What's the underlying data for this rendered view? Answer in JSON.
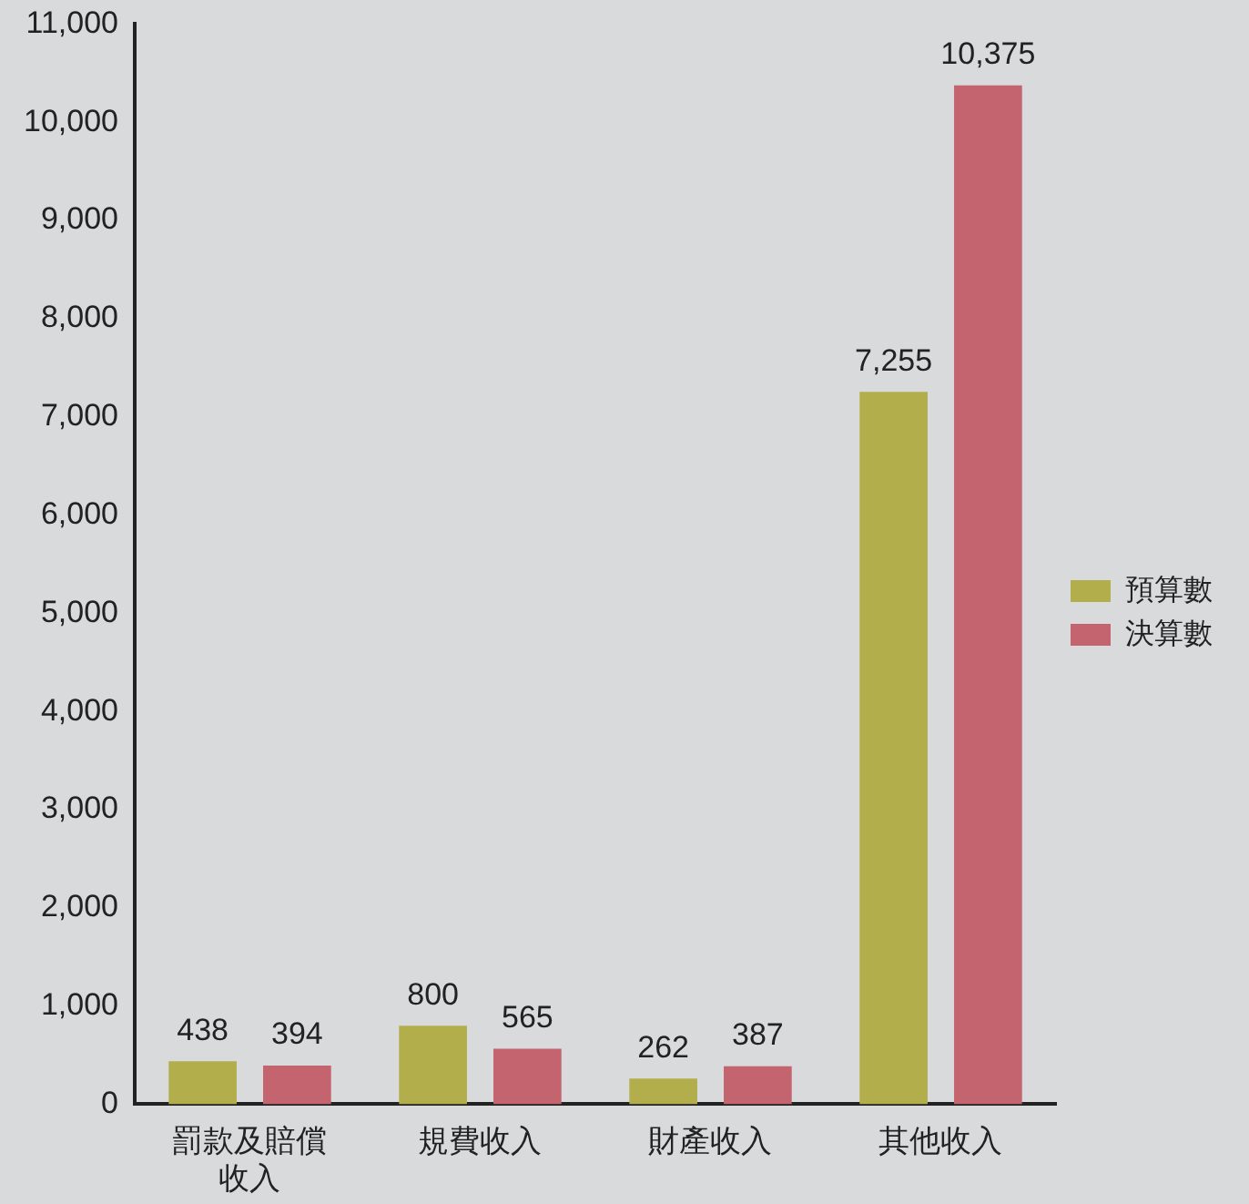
{
  "chart_data": {
    "type": "bar",
    "categories": [
      "罰款及賠償收入",
      "規費收入",
      "財產收入",
      "其他收入"
    ],
    "series": [
      {
        "name": "預算數",
        "color": "#b3ae4c",
        "values": [
          438,
          800,
          262,
          7255
        ],
        "value_labels": [
          "438",
          "800",
          "262",
          "7,255"
        ]
      },
      {
        "name": "決算數",
        "color": "#c4646e",
        "values": [
          394,
          565,
          387,
          10375
        ],
        "value_labels": [
          "394",
          "565",
          "387",
          "10,375"
        ]
      }
    ],
    "ylim": [
      0,
      11000
    ],
    "yticks": [
      0,
      {
        "value": 1000,
        "label": "1,000"
      },
      {
        "value": 2000,
        "label": "2,000"
      },
      {
        "value": 3000,
        "label": "3,000"
      },
      {
        "value": 4000,
        "label": "4,000"
      },
      {
        "value": 5000,
        "label": "5,000"
      },
      {
        "value": 6000,
        "label": "6,000"
      },
      {
        "value": 7000,
        "label": "7,000"
      },
      {
        "value": 8000,
        "label": "8,000"
      },
      {
        "value": 9000,
        "label": "9,000"
      },
      {
        "value": 10000,
        "label": "10,000"
      },
      {
        "value": 11000,
        "label": "11,000"
      }
    ],
    "grid": false,
    "legend": "right"
  }
}
